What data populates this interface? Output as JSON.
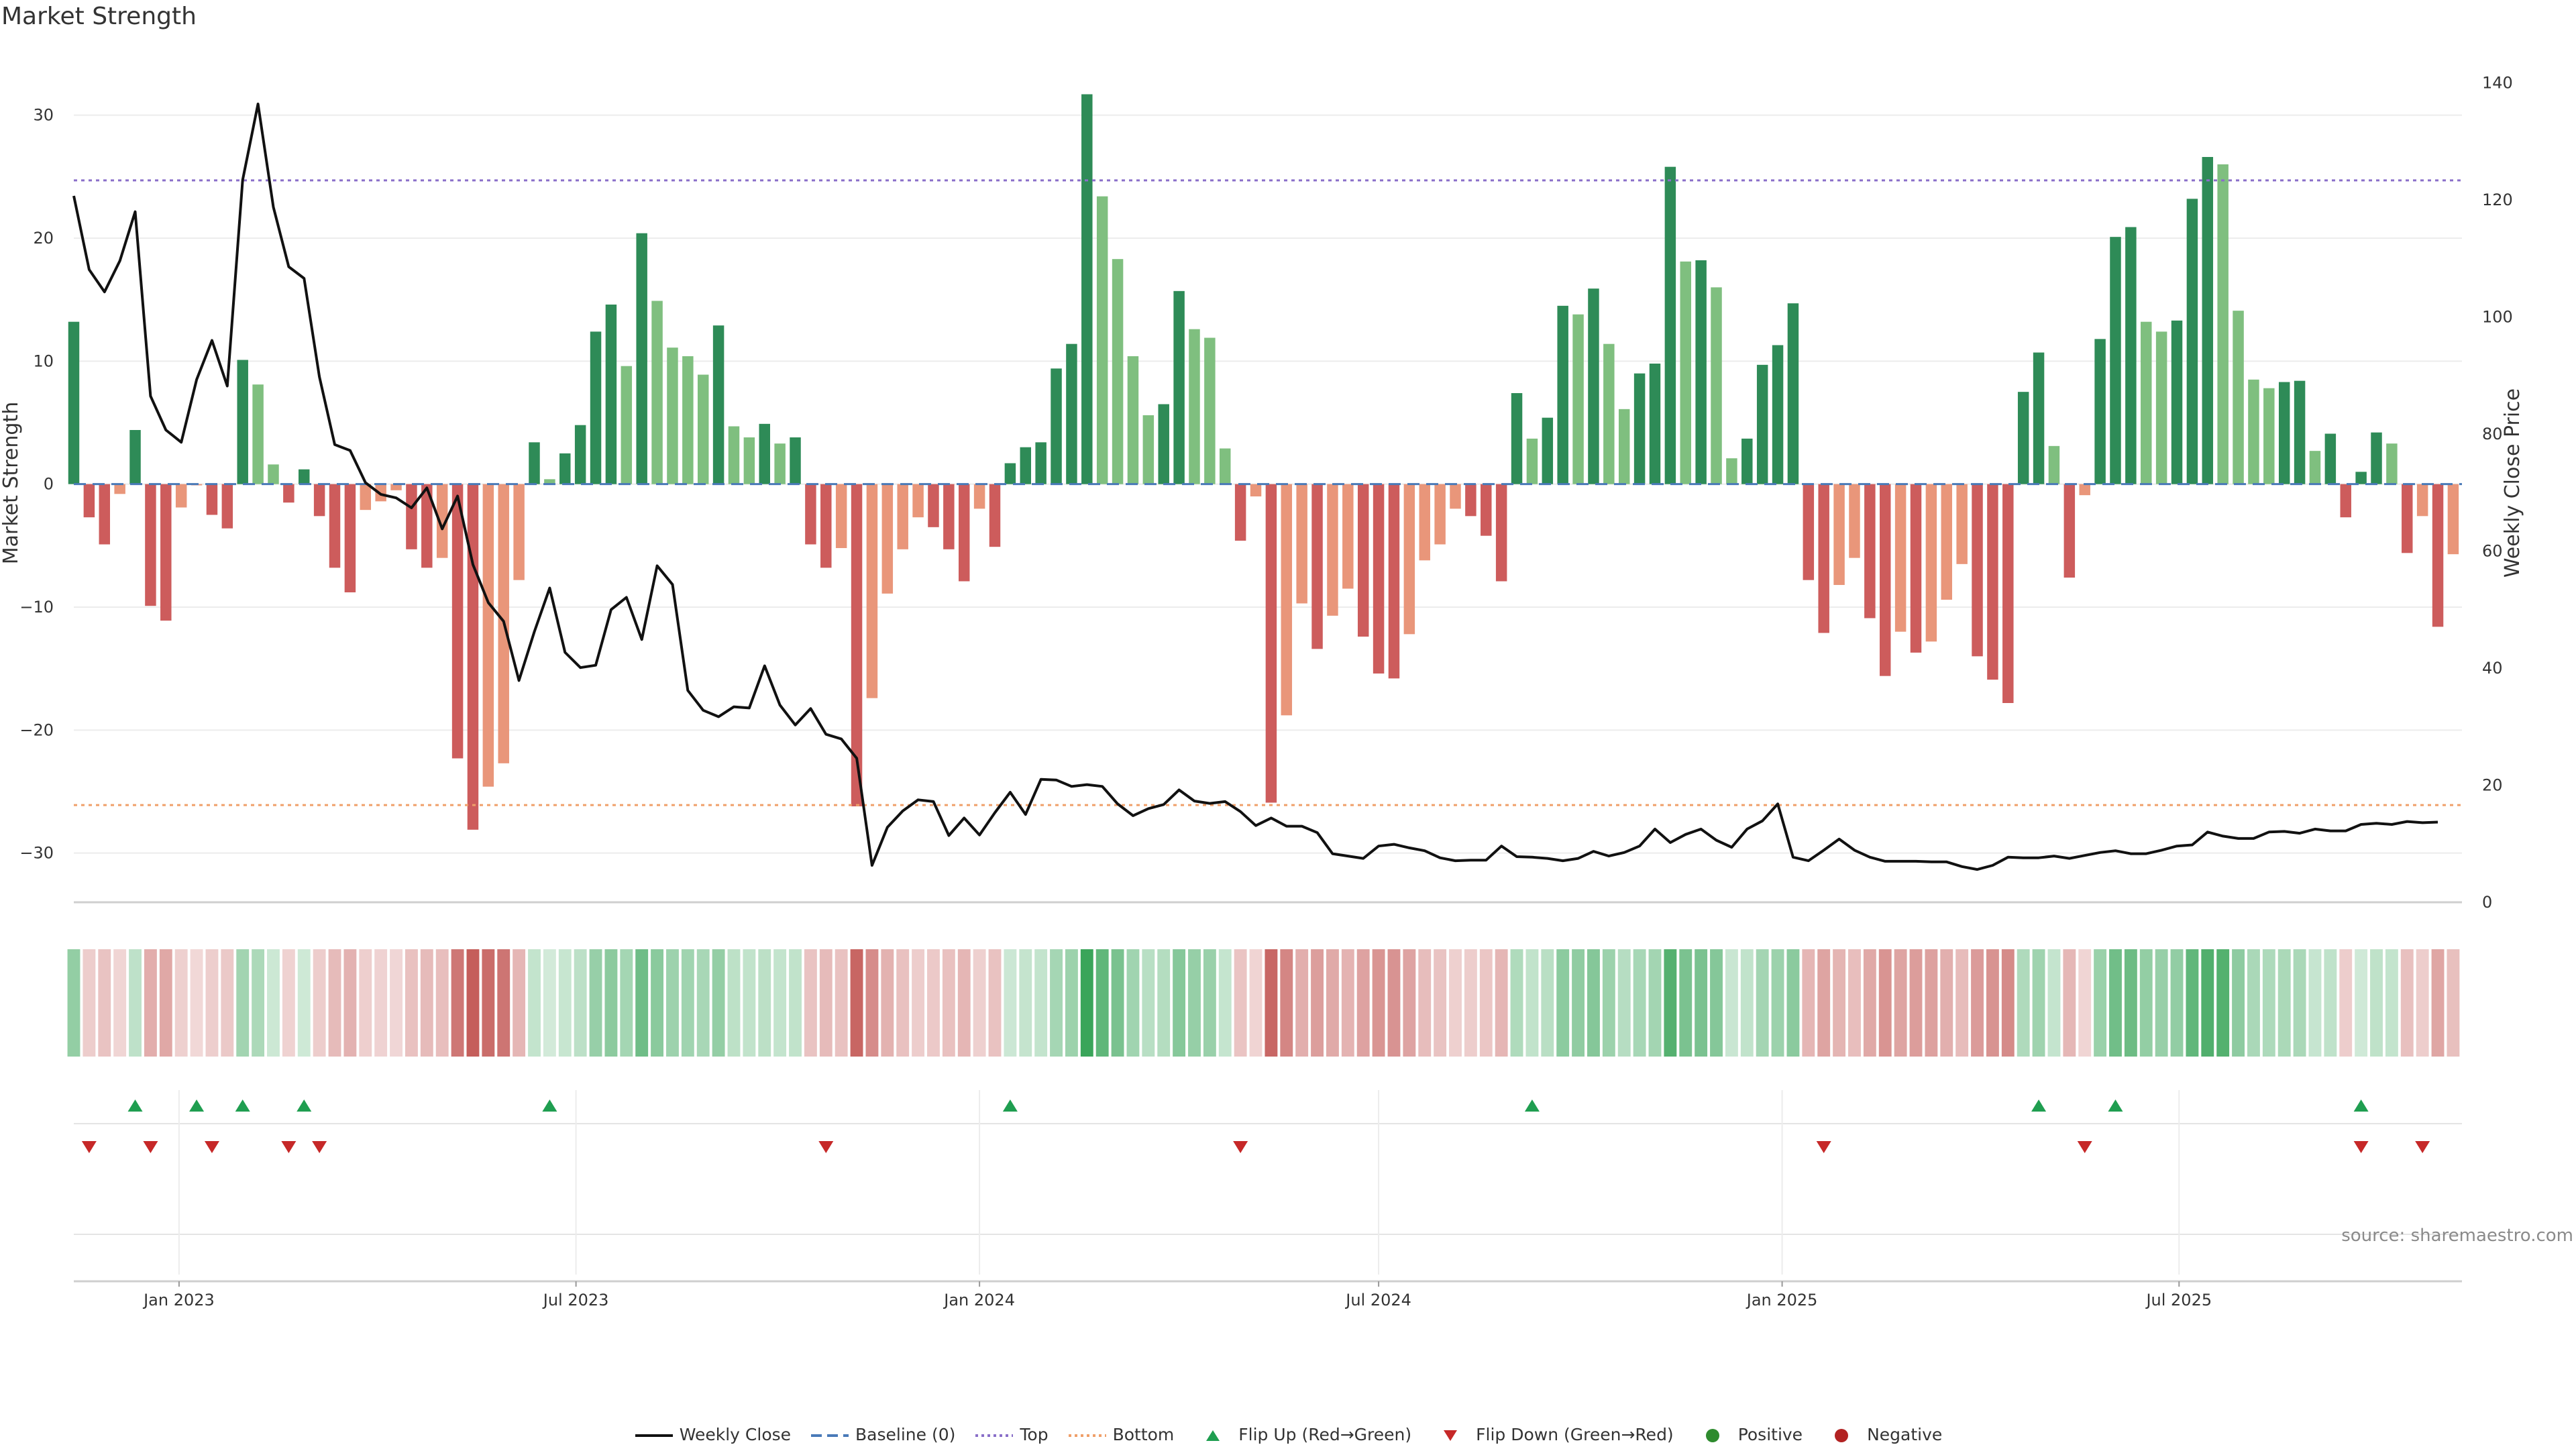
{
  "chart_data": {
    "type": "bar",
    "title": "Market Strength",
    "ylabel_left": "Market Strength",
    "ylabel_right": "Weekly Close Price",
    "ylim_left": [
      -34,
      35
    ],
    "ylim_right": [
      0,
      145
    ],
    "yticks_left": [
      -30,
      -20,
      -10,
      0,
      10,
      20,
      30
    ],
    "yticks_left_labels": [
      "−30",
      "−20",
      "−10",
      "0",
      "10",
      "20",
      "30"
    ],
    "yticks_right": [
      0,
      20,
      40,
      60,
      80,
      100,
      120,
      140
    ],
    "x_start": "2022-11-14",
    "x_end": "2025-11-07",
    "x_tick_labels": [
      {
        "date": "2023-01-01",
        "label": "Jan 2023"
      },
      {
        "date": "2023-07-01",
        "label": "Jul 2023"
      },
      {
        "date": "2024-01-01",
        "label": "Jan 2024"
      },
      {
        "date": "2024-07-01",
        "label": "Jul 2024"
      },
      {
        "date": "2025-01-01",
        "label": "Jan 2025"
      },
      {
        "date": "2025-07-01",
        "label": "Jul 2025"
      }
    ],
    "top_threshold": 24.7,
    "bottom_threshold": -26.1,
    "first_week": "2022-11-14",
    "series": [
      {
        "name": "Market Strength",
        "axis": "left",
        "values": [
          13.2,
          -2.7,
          -4.9,
          -0.8,
          4.4,
          -9.9,
          -11.1,
          -1.9,
          -0.1,
          -2.5,
          -3.6,
          10.1,
          8.1,
          1.6,
          -1.5,
          1.2,
          -2.6,
          -6.8,
          -8.8,
          -2.1,
          -1.4,
          -0.5,
          -5.3,
          -6.8,
          -6.0,
          -22.3,
          -28.1,
          -24.6,
          -22.7,
          -7.8,
          3.4,
          0.4,
          2.5,
          4.8,
          12.4,
          14.6,
          9.6,
          20.4,
          14.9,
          11.1,
          10.4,
          8.9,
          12.9,
          4.7,
          3.8,
          4.9,
          3.3,
          3.8,
          -4.9,
          -6.8,
          -5.2,
          -26.2,
          -17.4,
          -8.9,
          -5.3,
          -2.7,
          -3.5,
          -5.3,
          -7.9,
          -2.0,
          -5.1,
          1.7,
          3.0,
          3.4,
          9.4,
          11.4,
          31.7,
          23.4,
          18.3,
          10.4,
          5.6,
          6.5,
          15.7,
          12.6,
          11.9,
          2.9,
          -4.6,
          -1.0,
          -25.9,
          -18.8,
          -9.7,
          -13.4,
          -10.7,
          -8.5,
          -12.4,
          -15.4,
          -15.8,
          -12.2,
          -6.2,
          -4.9,
          -2.0,
          -2.6,
          -4.2,
          -7.9,
          7.4,
          3.7,
          5.4,
          14.5,
          13.8,
          15.9,
          11.4,
          6.1,
          9.0,
          9.8,
          25.8,
          18.1,
          18.2,
          16.0,
          2.1,
          3.7,
          9.7,
          11.3,
          14.7,
          -7.8,
          -12.1,
          -8.2,
          -6.0,
          -10.9,
          -15.6,
          -12.0,
          -13.7,
          -12.8,
          -9.4,
          -6.5,
          -14.0,
          -15.9,
          -17.8,
          7.5,
          10.7,
          3.1,
          -7.6,
          -0.9,
          11.8,
          20.1,
          20.9,
          13.2,
          12.4,
          13.3,
          23.2,
          26.6,
          26.0,
          14.1,
          8.5,
          7.8,
          8.3,
          8.4,
          2.7,
          4.1,
          -2.7,
          1.0,
          4.2,
          3.3,
          -5.6,
          -2.6,
          -11.6,
          -5.7
        ]
      },
      {
        "name": "Weekly Close",
        "axis": "right",
        "values": [
          120.7,
          108.1,
          104.3,
          109.6,
          118.0,
          86.5,
          80.7,
          78.6,
          89.3,
          96.0,
          88.2,
          123.4,
          136.4,
          118.8,
          108.6,
          106.6,
          89.8,
          78.2,
          77.2,
          71.7,
          69.7,
          69.1,
          67.4,
          70.8,
          63.8,
          69.4,
          57.7,
          51.2,
          48.0,
          37.9,
          46.2,
          53.7,
          42.7,
          40.1,
          40.5,
          50.0,
          52.1,
          44.9,
          57.5,
          54.3,
          36.2,
          32.8,
          31.7,
          33.4,
          33.2,
          40.4,
          33.7,
          30.3,
          33.1,
          28.7,
          27.9,
          24.6,
          6.3,
          12.8,
          15.6,
          17.5,
          17.2,
          11.4,
          14.4,
          11.5,
          15.3,
          18.8,
          15.0,
          21.0,
          20.9,
          19.8,
          20.1,
          19.8,
          16.8,
          14.8,
          16.0,
          16.7,
          19.2,
          17.3,
          16.9,
          17.2,
          15.5,
          13.1,
          14.4,
          13.0,
          13.0,
          11.9,
          8.3,
          7.9,
          7.5,
          9.6,
          9.9,
          9.3,
          8.8,
          7.6,
          7.1,
          7.2,
          7.2,
          9.6,
          7.8,
          7.7,
          7.5,
          7.1,
          7.5,
          8.7,
          7.9,
          8.5,
          9.6,
          12.5,
          10.2,
          11.6,
          12.5,
          10.6,
          9.4,
          12.5,
          13.9,
          16.8,
          7.7,
          7.1,
          8.9,
          10.8,
          8.9,
          7.7,
          7.0,
          7.0,
          7.0,
          6.9,
          6.9,
          6.1,
          5.6,
          6.3,
          7.7,
          7.6,
          7.6,
          7.9,
          7.5,
          8.0,
          8.5,
          8.8,
          8.3,
          8.3,
          8.9,
          9.6,
          9.8,
          12.0,
          11.3,
          10.9,
          10.9,
          12.0,
          12.1,
          11.8,
          12.5,
          12.2,
          12.2,
          13.3,
          13.5,
          13.3,
          13.8,
          13.6,
          13.7
        ]
      }
    ],
    "flip_up_weeks": [
      4,
      8,
      11,
      15,
      31,
      61,
      95,
      128,
      133,
      149
    ],
    "flip_down_weeks": [
      1,
      5,
      9,
      14,
      16,
      49,
      76,
      114,
      131,
      149,
      153
    ],
    "colors": {
      "strong_positive": "#2e8b57",
      "weak_positive": "#7fbf7f",
      "strong_negative": "#cd5c5c",
      "weak_negative": "#e9967a",
      "weekly_close": "#111111",
      "baseline": "#4a7ab8",
      "top": "#8a6fc9",
      "bottom": "#f0a06a",
      "flip_up": "#1f9e50",
      "flip_down": "#c62828",
      "positive": "#2e8b2e",
      "negative": "#b22222",
      "heat_positive": "#3aa55a",
      "heat_negative": "#c0504d"
    },
    "legend": [
      {
        "label": "Weekly Close",
        "kind": "line",
        "color_key": "weekly_close",
        "icon": "solid-line"
      },
      {
        "label": "Baseline (0)",
        "kind": "dashed",
        "color_key": "baseline",
        "icon": "dashed-line"
      },
      {
        "label": "Top",
        "kind": "dotted",
        "color_key": "top",
        "icon": "dotted-line"
      },
      {
        "label": "Bottom",
        "kind": "dotted",
        "color_key": "bottom",
        "icon": "dotted-line"
      },
      {
        "label": "Flip Up (Red→Green)",
        "kind": "up",
        "color_key": "flip_up",
        "icon": "triangle-up-icon"
      },
      {
        "label": "Flip Down (Green→Red)",
        "kind": "down",
        "color_key": "flip_down",
        "icon": "triangle-down-icon"
      },
      {
        "label": "Positive",
        "kind": "dot",
        "color_key": "positive",
        "icon": "circle-icon"
      },
      {
        "label": "Negative",
        "kind": "dot",
        "color_key": "negative",
        "icon": "circle-icon"
      }
    ],
    "source": "source: sharemaestro.com"
  }
}
